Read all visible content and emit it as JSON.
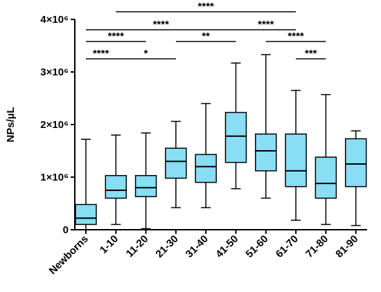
{
  "chart_data": {
    "type": "box",
    "y_label": "NPs/µL",
    "categories": [
      "Newborns",
      "1-10",
      "11-20",
      "21-30",
      "31-40",
      "41-50",
      "51-60",
      "61-70",
      "71-80",
      "81-90"
    ],
    "color": "#87def5",
    "ylim": [
      0,
      4000000
    ],
    "yticks": [
      0,
      {
        "value": 1000000,
        "label": "1×10⁶"
      },
      {
        "value": 2000000,
        "label": "2×10⁶"
      },
      {
        "value": 3000000,
        "label": "3×10⁶"
      },
      {
        "value": 4000000,
        "label": "4×10⁶"
      }
    ],
    "boxes": [
      {
        "min": 0,
        "q1": 100000,
        "median": 220000,
        "q3": 480000,
        "max": 1720000
      },
      {
        "min": 100000,
        "q1": 600000,
        "median": 750000,
        "q3": 1030000,
        "max": 1800000
      },
      {
        "min": 20000,
        "q1": 630000,
        "median": 800000,
        "q3": 1030000,
        "max": 1840000
      },
      {
        "min": 420000,
        "q1": 980000,
        "median": 1300000,
        "q3": 1550000,
        "max": 2060000
      },
      {
        "min": 420000,
        "q1": 900000,
        "median": 1200000,
        "q3": 1430000,
        "max": 2400000
      },
      {
        "min": 780000,
        "q1": 1280000,
        "median": 1780000,
        "q3": 2230000,
        "max": 3170000
      },
      {
        "min": 600000,
        "q1": 1120000,
        "median": 1500000,
        "q3": 1820000,
        "max": 3330000
      },
      {
        "min": 180000,
        "q1": 820000,
        "median": 1120000,
        "q3": 1820000,
        "max": 2650000
      },
      {
        "min": 100000,
        "q1": 600000,
        "median": 880000,
        "q3": 1380000,
        "max": 2570000
      },
      {
        "min": 80000,
        "q1": 820000,
        "median": 1250000,
        "q3": 1730000,
        "max": 1880000
      }
    ],
    "significance": [
      {
        "from": "1-10",
        "to": "61-70",
        "label": "****"
      },
      {
        "from": "Newborns",
        "to": "41-50",
        "label": "****"
      },
      {
        "from": "41-50",
        "to": "61-70",
        "label": "****"
      },
      {
        "from": "Newborns",
        "to": "11-20",
        "label": "****"
      },
      {
        "from": "21-30",
        "to": "41-50",
        "label": "**"
      },
      {
        "from": "51-60",
        "to": "71-80",
        "label": "****"
      },
      {
        "from": "Newborns",
        "to": "1-10",
        "label": "****"
      },
      {
        "from": "1-10",
        "to": "21-30",
        "label": "*"
      },
      {
        "from": "61-70",
        "to": "71-80",
        "label": "***"
      }
    ]
  }
}
